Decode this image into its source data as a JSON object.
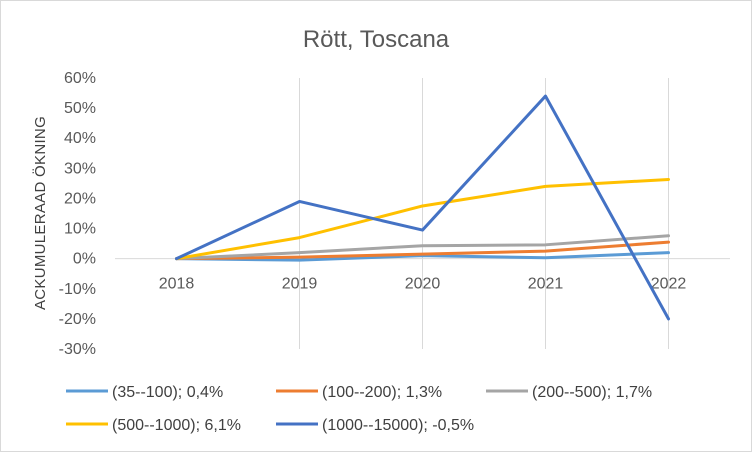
{
  "chart_data": {
    "type": "line",
    "title": "Rött, Toscana",
    "ylabel": "ACKUMULERAAD ÖKNING",
    "xlabel": "",
    "categories": [
      "2018",
      "2019",
      "2020",
      "2021",
      "2022"
    ],
    "yticks": [
      "60%",
      "50%",
      "40%",
      "30%",
      "20%",
      "10%",
      "0%",
      "-10%",
      "-20%",
      "-30%"
    ],
    "ylim": [
      -30,
      60
    ],
    "grid": "vertical",
    "legend_position": "bottom",
    "series": [
      {
        "name": "(35--100); 0,4%",
        "color": "#5b9bd5",
        "values": [
          0,
          -0.5,
          1,
          0.3,
          2
        ]
      },
      {
        "name": "(100--200); 1,3%",
        "color": "#ed7d31",
        "values": [
          0,
          0.5,
          1.5,
          2.5,
          5.5
        ]
      },
      {
        "name": "(200--500); 1,7%",
        "color": "#a5a5a5",
        "values": [
          0,
          2,
          4.3,
          4.6,
          7.6
        ]
      },
      {
        "name": "(500--1000); 6,1%",
        "color": "#ffc000",
        "values": [
          0,
          7,
          17.5,
          24,
          26.3
        ]
      },
      {
        "name": "(1000--15000); -0,5%",
        "color": "#4472c4",
        "values": [
          0,
          19,
          9.5,
          54,
          -20
        ]
      }
    ]
  }
}
